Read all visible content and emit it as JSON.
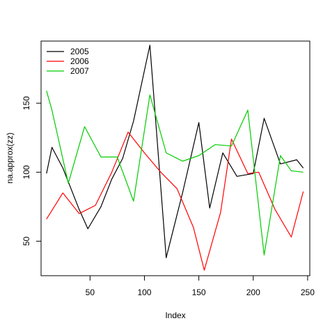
{
  "chart_data": {
    "type": "line",
    "title": "",
    "xlabel": "Index",
    "ylabel": "na.approx(zz)",
    "xlim": [
      5,
      252
    ],
    "ylim": [
      25,
      195
    ],
    "x_ticks": [
      50,
      100,
      150,
      200,
      250
    ],
    "y_ticks": [
      50,
      100,
      150
    ],
    "grid": false,
    "legend_position": "top-left",
    "series": [
      {
        "name": "2005",
        "color": "#000000",
        "points": [
          [
            10,
            99
          ],
          [
            15,
            118
          ],
          [
            25,
            103
          ],
          [
            40,
            73
          ],
          [
            48,
            59
          ],
          [
            60,
            75
          ],
          [
            70,
            95
          ],
          [
            80,
            110
          ],
          [
            90,
            137
          ],
          [
            105,
            192
          ],
          [
            120,
            38
          ],
          [
            135,
            85
          ],
          [
            150,
            136
          ],
          [
            160,
            74
          ],
          [
            172,
            114
          ],
          [
            185,
            97
          ],
          [
            200,
            99
          ],
          [
            210,
            139
          ],
          [
            225,
            106
          ],
          [
            240,
            109
          ],
          [
            246,
            103
          ]
        ]
      },
      {
        "name": "2006",
        "color": "#ff0000",
        "points": [
          [
            10,
            66
          ],
          [
            25,
            85
          ],
          [
            40,
            70
          ],
          [
            55,
            76
          ],
          [
            70,
            100
          ],
          [
            85,
            129
          ],
          [
            100,
            114
          ],
          [
            115,
            100
          ],
          [
            130,
            88
          ],
          [
            145,
            60
          ],
          [
            155,
            29
          ],
          [
            170,
            71
          ],
          [
            180,
            124
          ],
          [
            195,
            99
          ],
          [
            205,
            100
          ],
          [
            220,
            73
          ],
          [
            235,
            53
          ],
          [
            246,
            86
          ]
        ]
      },
      {
        "name": "2007",
        "color": "#00cc00",
        "points": [
          [
            10,
            159
          ],
          [
            15,
            145
          ],
          [
            30,
            92
          ],
          [
            45,
            133
          ],
          [
            60,
            111
          ],
          [
            75,
            111
          ],
          [
            90,
            79
          ],
          [
            105,
            156
          ],
          [
            120,
            114
          ],
          [
            135,
            108
          ],
          [
            150,
            112
          ],
          [
            165,
            120
          ],
          [
            180,
            119
          ],
          [
            195,
            145
          ],
          [
            210,
            40
          ],
          [
            225,
            112
          ],
          [
            235,
            101
          ],
          [
            246,
            100
          ]
        ]
      }
    ]
  }
}
